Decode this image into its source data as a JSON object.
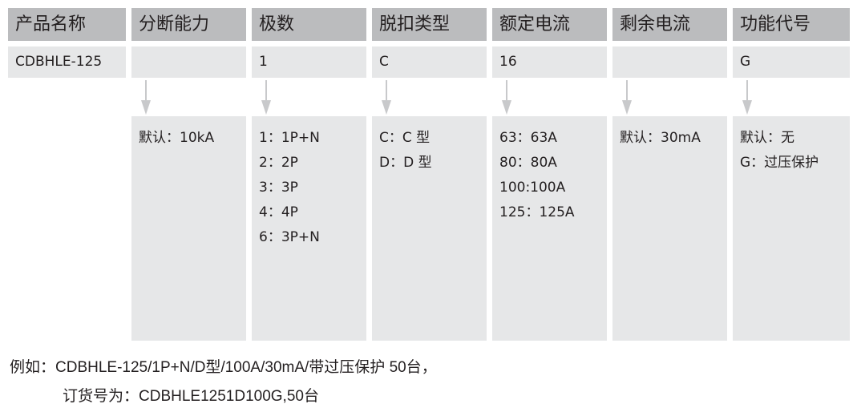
{
  "columns": [
    {
      "header": "产品名称",
      "value": "CDBHLE-125",
      "details": null
    },
    {
      "header": "分断能力",
      "value": "",
      "details": [
        "默认：10kA"
      ]
    },
    {
      "header": "极数",
      "value": "1",
      "details": [
        "1：1P+N",
        "2：2P",
        "3：3P",
        "4：4P",
        "6：3P+N"
      ]
    },
    {
      "header": "脱扣类型",
      "value": "C",
      "details": [
        "C：C 型",
        "D：D 型"
      ]
    },
    {
      "header": "额定电流",
      "value": "16",
      "details": [
        "63：63A",
        "80：80A",
        "100:100A",
        "125：125A"
      ]
    },
    {
      "header": "剩余电流",
      "value": "",
      "details": [
        "默认：30mA"
      ]
    },
    {
      "header": "功能代号",
      "value": "G",
      "details": [
        "默认：无",
        "G：过压保护"
      ]
    }
  ],
  "footer": {
    "line1": "例如：CDBHLE-125/1P+N/D型/100A/30mA/带过压保护 50台，",
    "line2": "订货号为：CDBHLE1251D100G,50台"
  },
  "colors": {
    "header_bg": "#bbbcbe",
    "cell_bg": "#e6e7e8",
    "arrow": "#c8c9cb"
  }
}
